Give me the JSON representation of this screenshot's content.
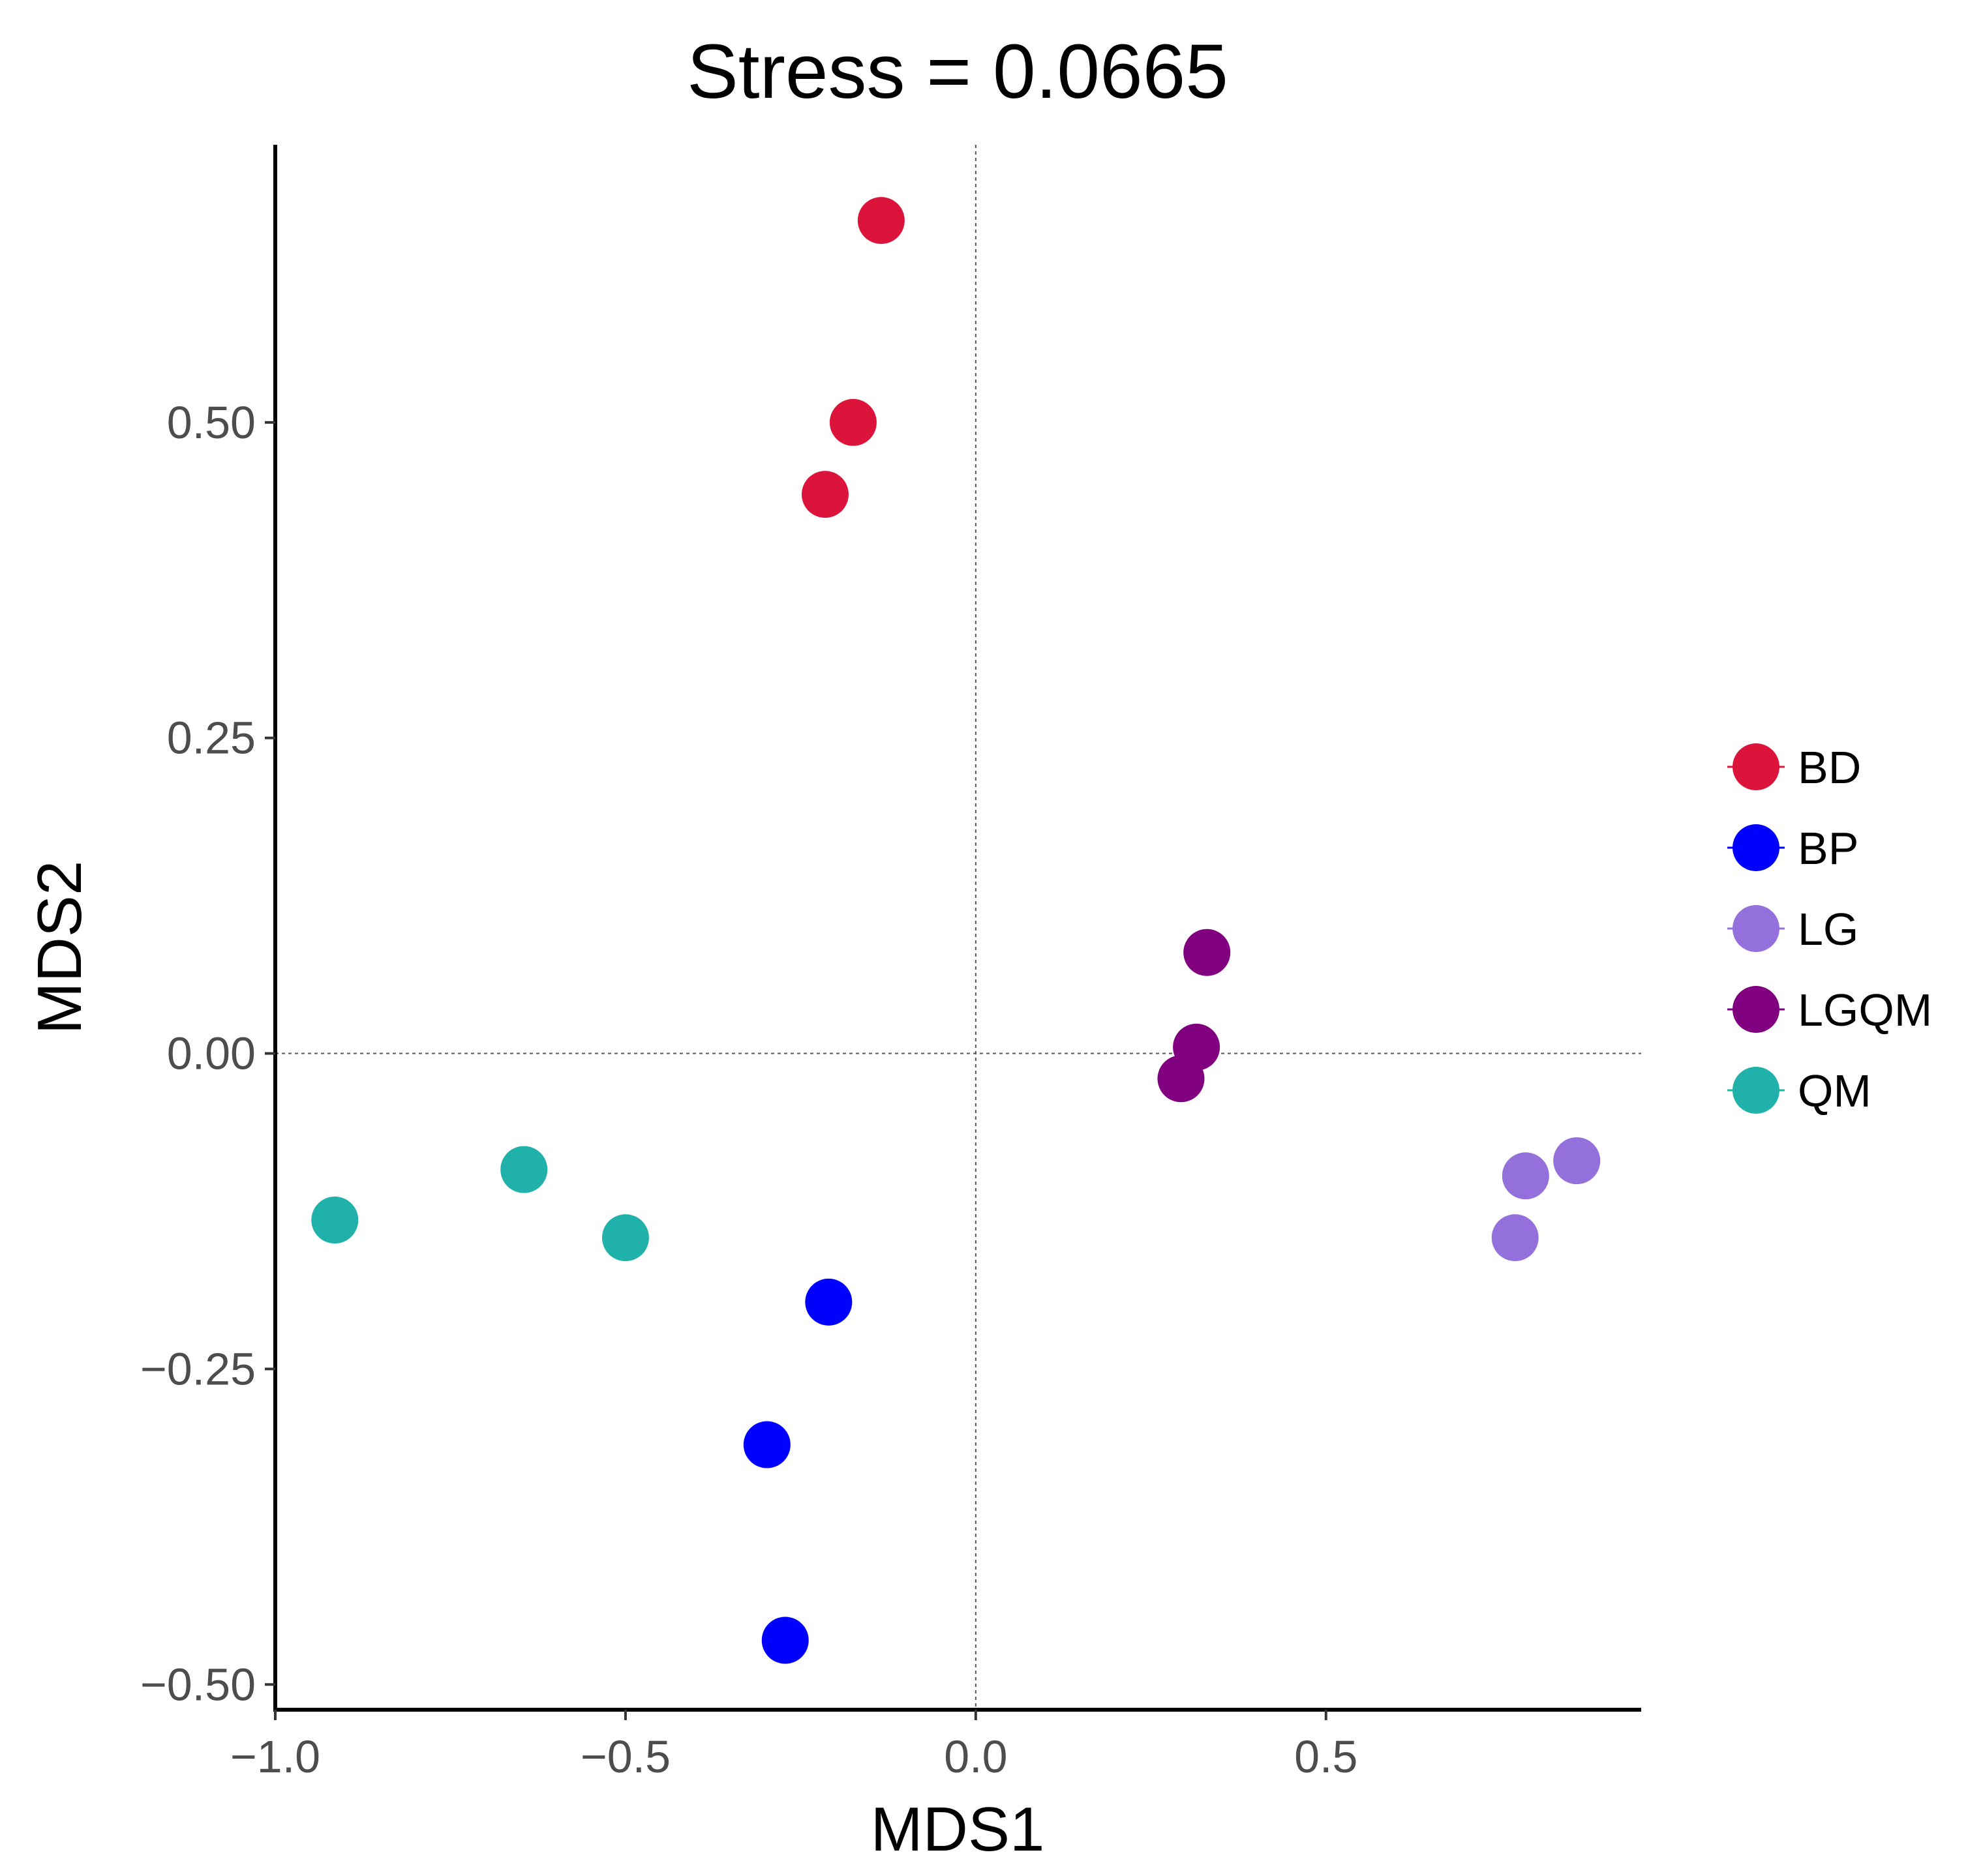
{
  "chart_data": {
    "type": "scatter",
    "title": "Stress = 0.0665",
    "xlabel": "MDS1",
    "ylabel": "MDS2",
    "xlim": [
      -1.0,
      0.95
    ],
    "ylim": [
      -0.52,
      0.72
    ],
    "x_ticks": [
      -1.0,
      -0.5,
      0.0,
      0.5
    ],
    "x_tick_labels": [
      "−1.0",
      "−0.5",
      "0.0",
      "0.5"
    ],
    "y_ticks": [
      -0.5,
      -0.25,
      0.0,
      0.25,
      0.5
    ],
    "y_tick_labels": [
      "−0.50",
      "−0.25",
      "0.00",
      "0.25",
      "0.50"
    ],
    "reference_lines": {
      "x": 0.0,
      "y": 0.0
    },
    "grid": false,
    "legend_position": "right",
    "series": [
      {
        "name": "BD",
        "color": "#dc143c",
        "points": [
          [
            -0.135,
            0.66
          ],
          [
            -0.175,
            0.5
          ],
          [
            -0.215,
            0.443
          ]
        ]
      },
      {
        "name": "BP",
        "color": "#0000ff",
        "points": [
          [
            -0.21,
            -0.197
          ],
          [
            -0.298,
            -0.31
          ],
          [
            -0.272,
            -0.465
          ]
        ]
      },
      {
        "name": "LG",
        "color": "#9370db",
        "points": [
          [
            0.858,
            -0.085
          ],
          [
            0.785,
            -0.097
          ],
          [
            0.77,
            -0.146
          ]
        ]
      },
      {
        "name": "LGQM",
        "color": "#800080",
        "points": [
          [
            0.33,
            0.08
          ],
          [
            0.315,
            0.005
          ],
          [
            0.293,
            -0.02
          ]
        ]
      },
      {
        "name": "QM",
        "color": "#20b2aa",
        "points": [
          [
            -0.915,
            -0.132
          ],
          [
            -0.645,
            -0.092
          ],
          [
            -0.5,
            -0.146
          ]
        ]
      }
    ]
  }
}
